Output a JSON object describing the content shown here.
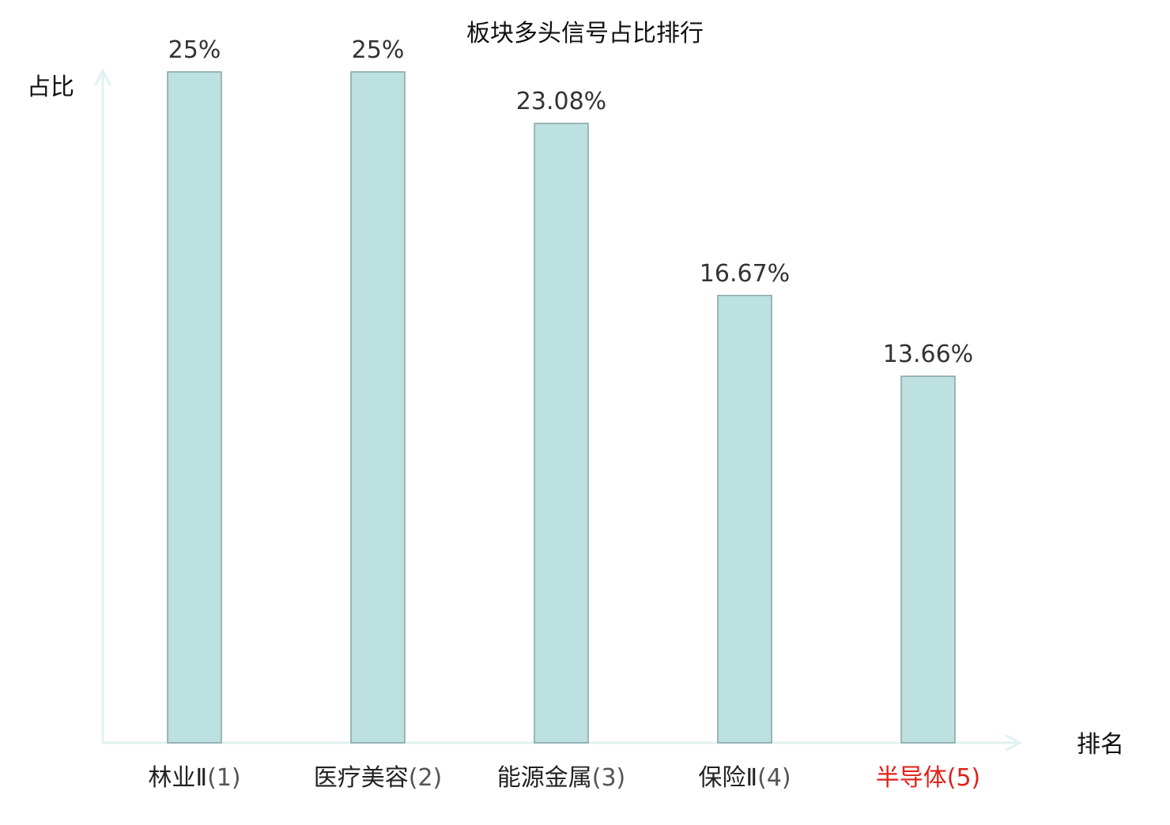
{
  "chart_data": {
    "type": "bar",
    "title": "板块多头信号占比排行",
    "xlabel": "排名",
    "ylabel": "占比",
    "categories": [
      "林业Ⅱ",
      "医疗美容",
      "能源金属",
      "保险Ⅱ",
      "半导体"
    ],
    "ranks": [
      "(1)",
      "(2)",
      "(3)",
      "(4)",
      "(5)"
    ],
    "values": [
      25,
      25,
      23.08,
      16.67,
      13.66
    ],
    "value_labels": [
      "25%",
      "25%",
      "23.08%",
      "16.67%",
      "13.66%"
    ],
    "highlight_index": 4,
    "ylim": [
      0,
      25
    ],
    "grid": false,
    "legend": "none",
    "colors": {
      "bar_fill": "#bde0e1",
      "bar_stroke": "#86a3a4",
      "axis": "#e0f2ef",
      "label_text": "#333333",
      "category_text": "#222222",
      "rank_text": "#555555",
      "highlight_text": "#e0211b"
    }
  }
}
